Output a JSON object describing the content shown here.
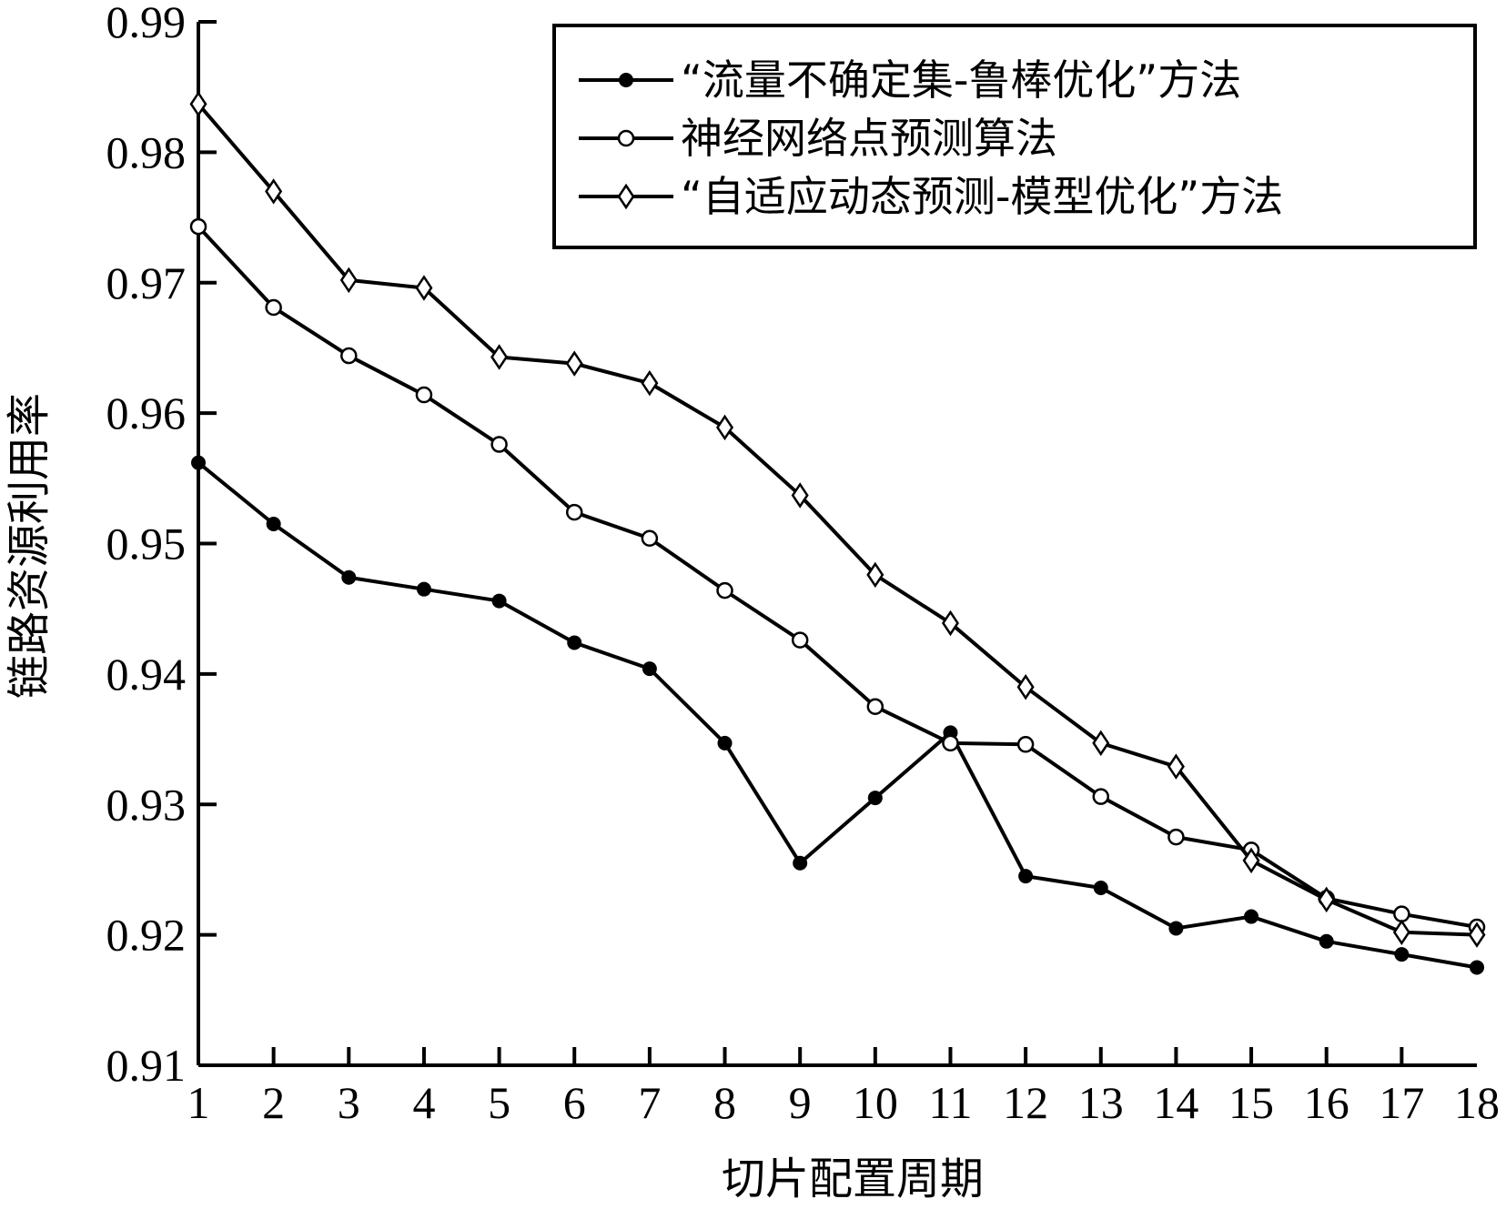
{
  "chart_data": {
    "type": "line",
    "title": "",
    "xlabel": "切片配置周期",
    "ylabel": "链路资源利用率",
    "x": [
      1,
      2,
      3,
      4,
      5,
      6,
      7,
      8,
      9,
      10,
      11,
      12,
      13,
      14,
      15,
      16,
      17,
      18
    ],
    "xlim": [
      1,
      18
    ],
    "ylim": [
      0.91,
      0.99
    ],
    "yticks": [
      "0.91",
      "0.92",
      "0.93",
      "0.94",
      "0.95",
      "0.96",
      "0.97",
      "0.98",
      "0.99"
    ],
    "xticks": [
      "1",
      "2",
      "3",
      "4",
      "5",
      "6",
      "7",
      "8",
      "9",
      "10",
      "11",
      "12",
      "13",
      "14",
      "15",
      "16",
      "17",
      "18"
    ],
    "grid": false,
    "legend_position": "top-right",
    "series": [
      {
        "name": "“流量不确定集-鲁棒优化”方法",
        "marker": "filled-circle",
        "values": [
          0.9562,
          0.9515,
          0.9474,
          0.9465,
          0.9456,
          0.9424,
          0.9404,
          0.9347,
          0.9255,
          0.9305,
          0.9355,
          0.9245,
          0.9236,
          0.9205,
          0.9214,
          0.9195,
          0.9185,
          0.9175
        ]
      },
      {
        "name": "神经网络点预测算法",
        "marker": "open-circle",
        "values": [
          0.9743,
          0.9681,
          0.9644,
          0.9614,
          0.9576,
          0.9524,
          0.9504,
          0.9464,
          0.9426,
          0.9375,
          0.9347,
          0.9346,
          0.9306,
          0.9275,
          0.9265,
          0.9228,
          0.9216,
          0.9206
        ]
      },
      {
        "name": "“自适应动态预测-模型优化”方法",
        "marker": "open-diamond",
        "values": [
          0.9837,
          0.977,
          0.9702,
          0.9696,
          0.9643,
          0.9638,
          0.9623,
          0.9589,
          0.9537,
          0.9476,
          0.9439,
          0.939,
          0.9347,
          0.9329,
          0.9257,
          0.9227,
          0.9202,
          0.92
        ]
      }
    ]
  }
}
